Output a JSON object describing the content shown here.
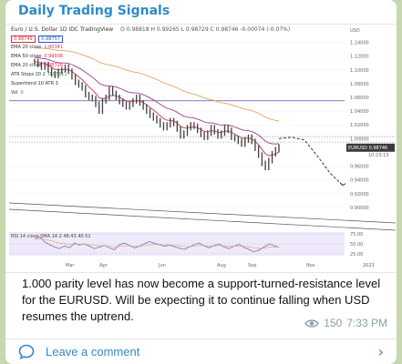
{
  "post": {
    "channel_name": "Daily Trading Signals",
    "caption": "1.000 parity level has now become a support-turned-resistance level for the EURUSD. Will be expecting it to continue falling when USD resumes the uptrend.",
    "views": "150",
    "time": "7:33 PM",
    "comment_label": "Leave a comment"
  },
  "chart_header": {
    "symbol": "Euro / U.S. Dollar",
    "interval": "1D",
    "source": "IDC",
    "platform": "TradingView",
    "ohlc": "O 0.98818 H 0.99265 L 0.98729 C 0.98746 -0.00074 (-0.07%)",
    "quote_currency": "USD",
    "bid": "0.98749",
    "ask": "0.98757"
  },
  "indicators": [
    {
      "label": "EMA 20 close",
      "value": "1.00341"
    },
    {
      "label": "EMA 50 close",
      "value": "0.99936"
    },
    {
      "label": "EMA 20 close",
      "value": "0.98726"
    },
    {
      "label": "ATR Stops 20 2",
      "value": "0.97311"
    },
    {
      "label": "Supertrend 10 ATR 3",
      "value": ""
    },
    {
      "label": "Vol",
      "value": "0"
    }
  ],
  "rsi_label": "RSI 14 close SMA 14 2",
  "rsi_values": "48.43 40.51",
  "price_tag": {
    "label": "EURUSD",
    "value": "0.98746",
    "sub": "10:23:13"
  },
  "colors": {
    "background": "#c7d8b0",
    "link": "#2f8ac6",
    "price_line": "#3f3f3f",
    "ema_red": "#cc3355",
    "ema_orange": "#e6a35a",
    "ema_purple": "#a83a8a",
    "resistance_line": "#5555aa",
    "rsi_line": "#7a6acb"
  },
  "chart_data": {
    "type": "line",
    "x_ticks": [
      "Mar",
      "Apr",
      "Jun",
      "Aug",
      "Sep",
      "Nov",
      "2023"
    ],
    "y_ticks": [
      "1.14000",
      "1.12000",
      "1.10000",
      "1.08000",
      "1.06000",
      "1.04000",
      "1.02000",
      "1.00000",
      "0.96000",
      "0.94000",
      "0.92000",
      "0.90000"
    ],
    "y_range": [
      0.88,
      1.15
    ],
    "rsi_ticks": [
      "75.00",
      "50.00",
      "25.00"
    ],
    "series": [
      {
        "name": "",
        "values": [
          1.112,
          1.108,
          1.104,
          1.108,
          1.1,
          1.094,
          1.092,
          1.098,
          1.1,
          1.104,
          1.098,
          1.09,
          1.082,
          1.078,
          1.074,
          1.064,
          1.06,
          1.058,
          1.05,
          1.04,
          1.055,
          1.06,
          1.072,
          1.066,
          1.06,
          1.054,
          1.05,
          1.046,
          1.05,
          1.055,
          1.06,
          1.052,
          1.046,
          1.04,
          1.034,
          1.03,
          1.026,
          1.02,
          1.016,
          1.02,
          1.026,
          1.022,
          1.014,
          1.004,
          1.008,
          1.016,
          1.02,
          1.018,
          1.012,
          1.006,
          1.002,
          1.008,
          1.016,
          1.01,
          1.004,
          1.008,
          1.016,
          1.012,
          1.002,
          1.0,
          0.996,
          0.992,
          0.998,
          1.002,
          0.996,
          0.986,
          0.976,
          0.964,
          0.958,
          0.968,
          0.978,
          0.984,
          0.988
        ]
      }
    ],
    "projection": [
      1.0,
      1.002,
      0.998,
      0.975,
      0.95,
      0.932
    ],
    "rsi_values": [
      62,
      68,
      55,
      48,
      42,
      38,
      45,
      40,
      52,
      47,
      50,
      44,
      38,
      42,
      46,
      40,
      35,
      48,
      52,
      46,
      40,
      44,
      50,
      56,
      52,
      48,
      44,
      47,
      43,
      39,
      36,
      42,
      48,
      52,
      45,
      40,
      46,
      50,
      42,
      38,
      44,
      49,
      41,
      36,
      30,
      34,
      42,
      50,
      46,
      41
    ]
  }
}
